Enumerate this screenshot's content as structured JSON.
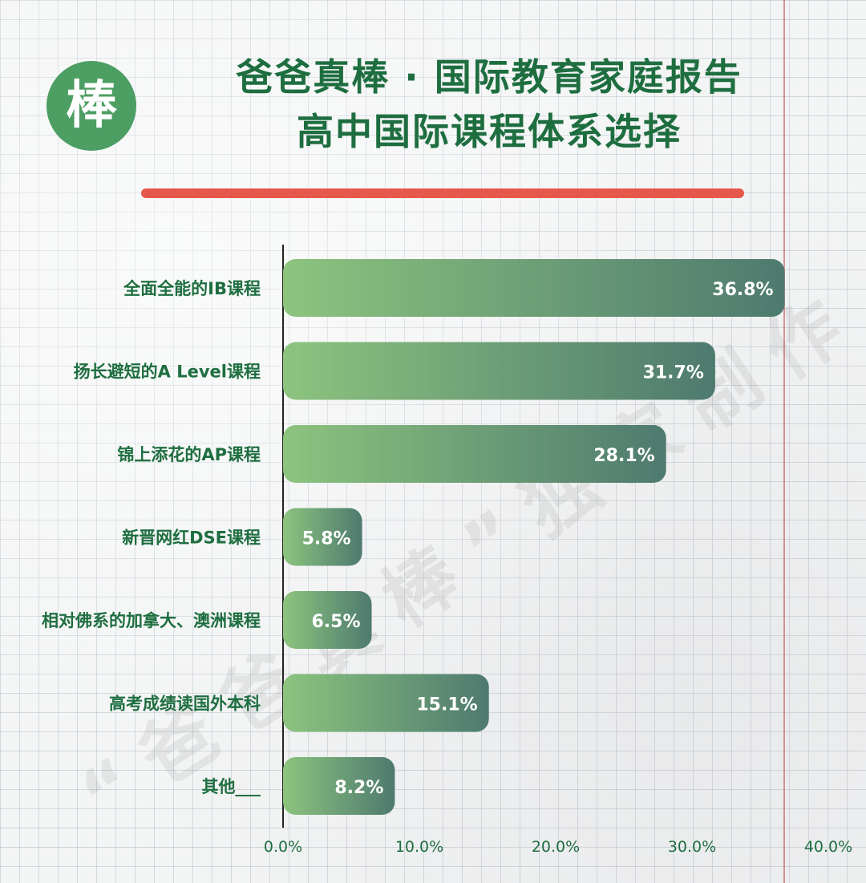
{
  "header": {
    "logo_char": "棒",
    "title_line1": "爸爸真棒 · 国际教育家庭报告",
    "title_line2": "高中国际课程体系选择"
  },
  "watermark": "“爸爸真棒”独家制作",
  "colors": {
    "title": "#1e6e40",
    "logo_bg": "#4c9e63",
    "rule": "#e6584a",
    "bar_start": "#8cc47e",
    "bar_end": "#4e7a6f",
    "label": "#1e6e40",
    "axis_text": "#1e6e40"
  },
  "chart_data": {
    "type": "bar",
    "orientation": "horizontal",
    "categories": [
      "全面全能的IB课程",
      "扬长避短的A Level课程",
      "锦上添花的AP课程",
      "新晋网红DSE课程",
      "相对佛系的加拿大、澳洲课程",
      "高考成绩读国外本科",
      "其他___"
    ],
    "values": [
      36.8,
      31.7,
      28.1,
      5.8,
      6.5,
      15.1,
      8.2
    ],
    "value_labels": [
      "36.8%",
      "31.7%",
      "28.1%",
      "5.8%",
      "6.5%",
      "15.1%",
      "8.2%"
    ],
    "xlim": [
      0,
      40
    ],
    "xticks": [
      "0.0%",
      "10.0%",
      "20.0%",
      "30.0%",
      "40.0%"
    ],
    "grid": false
  }
}
